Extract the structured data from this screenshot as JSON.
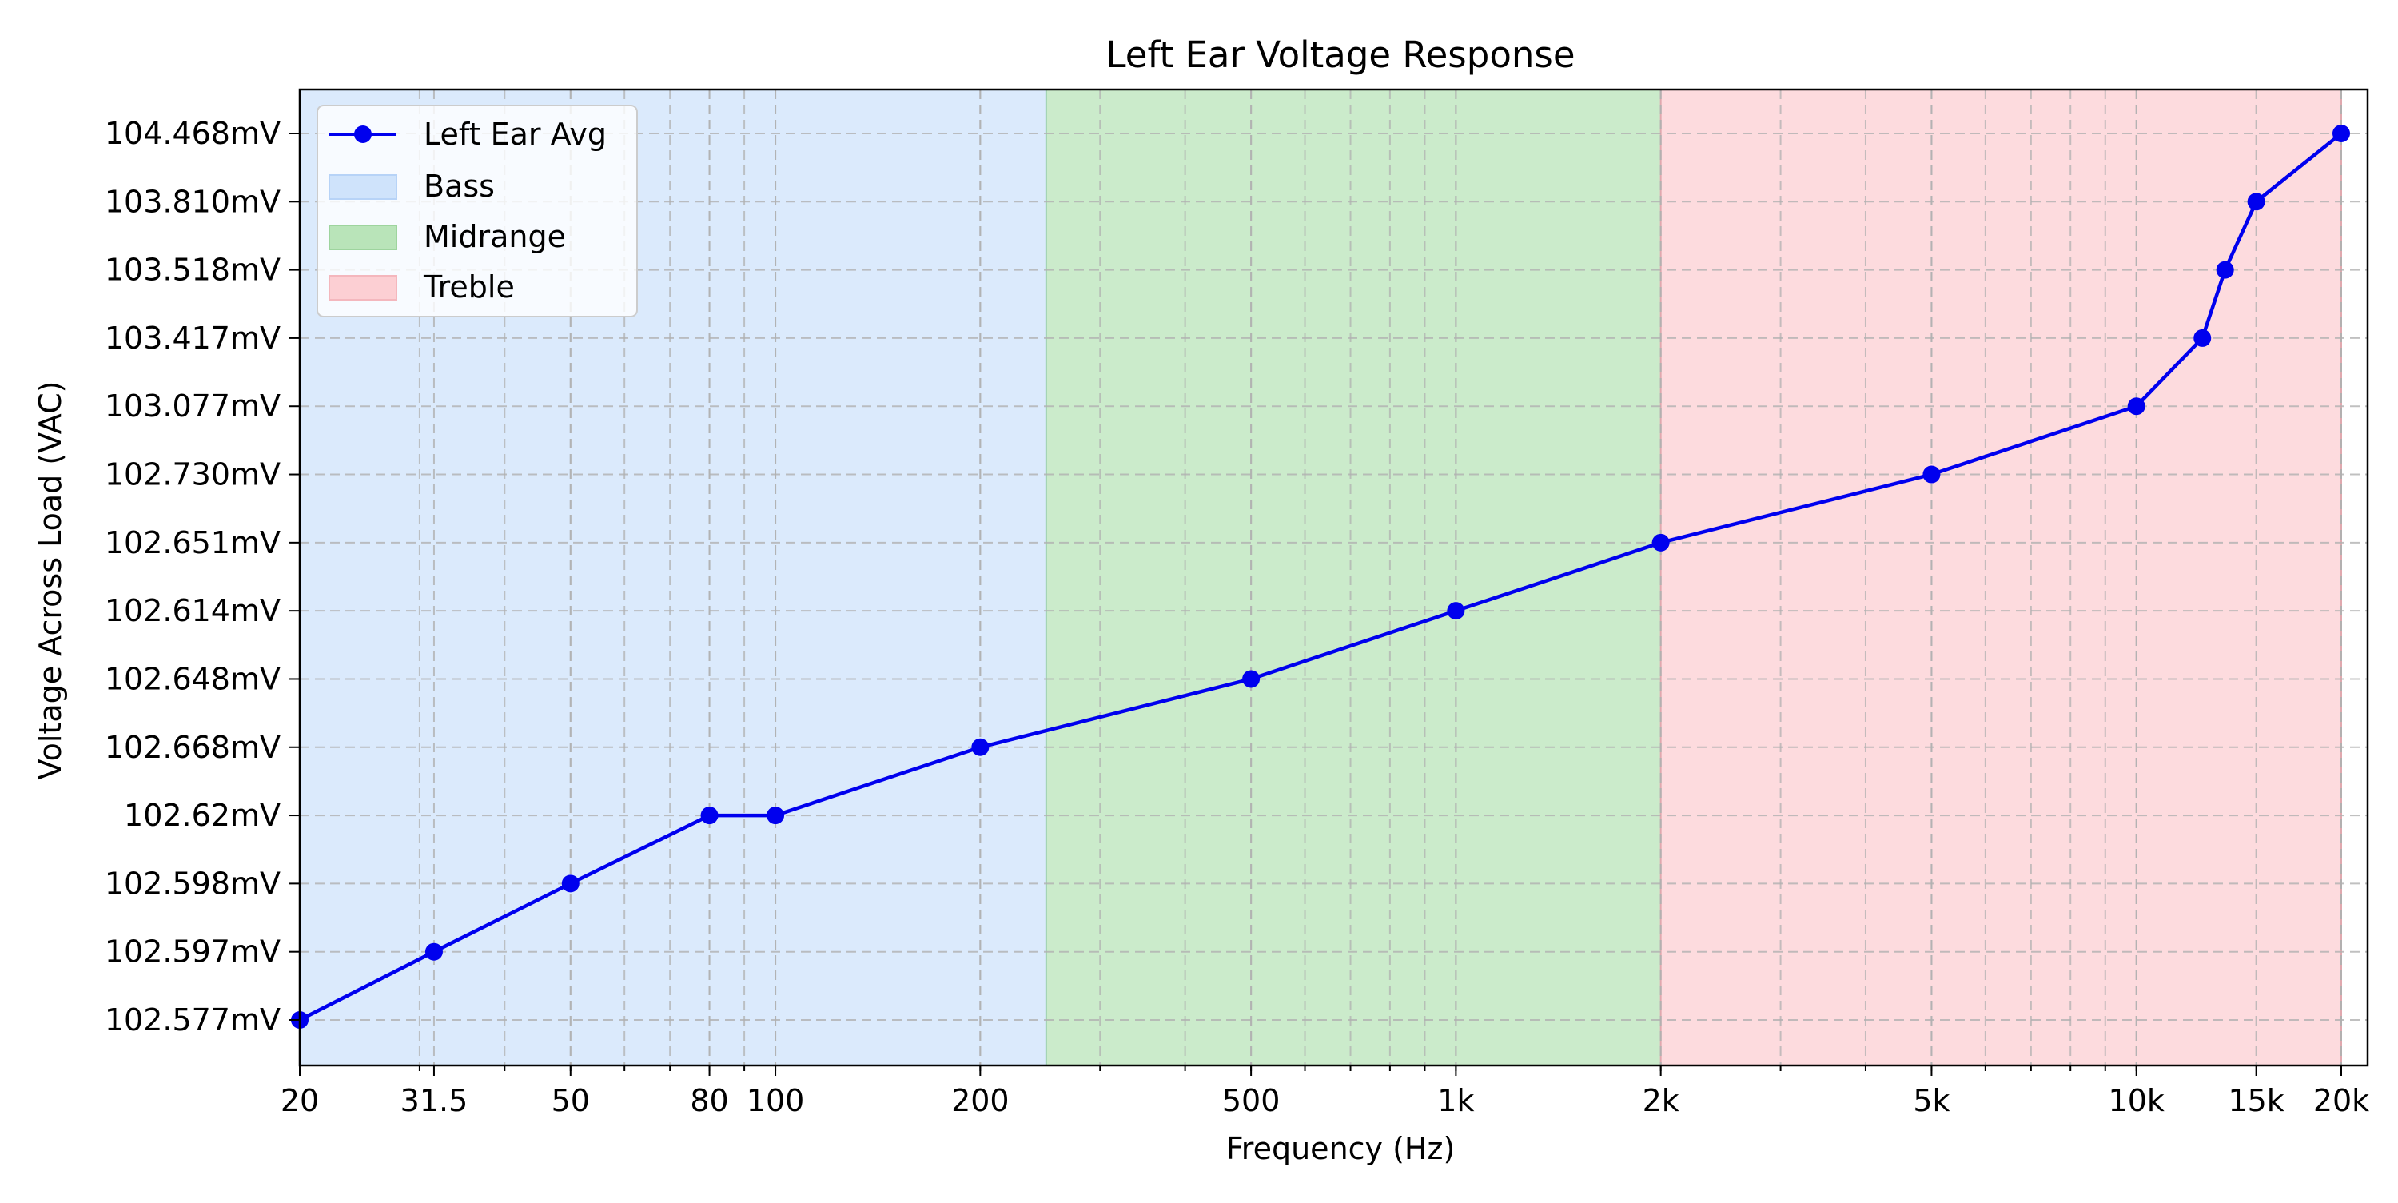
{
  "chart_data": {
    "type": "line",
    "title": "Left Ear Voltage Response",
    "xlabel": "Frequency (Hz)",
    "ylabel": "Voltage Across Load (VAC)",
    "x_scale": "log",
    "xlim": [
      20,
      21000
    ],
    "x_ticks": [
      {
        "value": 20,
        "label": "20"
      },
      {
        "value": 31.5,
        "label": "31.5"
      },
      {
        "value": 50,
        "label": "50"
      },
      {
        "value": 80,
        "label": "80"
      },
      {
        "value": 100,
        "label": "100"
      },
      {
        "value": 200,
        "label": "200"
      },
      {
        "value": 500,
        "label": "500"
      },
      {
        "value": 1000,
        "label": "1k"
      },
      {
        "value": 2000,
        "label": "2k"
      },
      {
        "value": 5000,
        "label": "5k"
      },
      {
        "value": 10000,
        "label": "10k"
      },
      {
        "value": 15000,
        "label": "15k"
      },
      {
        "value": 20000,
        "label": "20k"
      }
    ],
    "y_scale": "categorical (evenly spaced tick labels)",
    "y_ticks": [
      "102.577mV",
      "102.597mV",
      "102.598mV",
      "102.62mV",
      "102.668mV",
      "102.648mV",
      "102.614mV",
      "102.651mV",
      "102.730mV",
      "103.077mV",
      "103.417mV",
      "103.518mV",
      "103.810mV",
      "104.468mV"
    ],
    "grid": true,
    "grid_style": "dashed",
    "legend_placement": "top-left",
    "bands": [
      {
        "name": "Bass",
        "from": 20,
        "to": 250,
        "color": "#cfe3fb"
      },
      {
        "name": "Midrange",
        "from": 250,
        "to": 2000,
        "color": "#b9e4b9"
      },
      {
        "name": "Treble",
        "from": 2000,
        "to": 20000,
        "color": "#fccfd3"
      }
    ],
    "series": [
      {
        "name": "Left Ear Avg",
        "color": "#0000ee",
        "marker": "circle",
        "x": [
          20,
          31.5,
          50,
          80,
          100,
          200,
          500,
          1000,
          2000,
          5000,
          10000,
          12500,
          13500,
          15000,
          20000
        ],
        "y_index": [
          0,
          1,
          2,
          3,
          3,
          4,
          5,
          6,
          7,
          8,
          9,
          10,
          11,
          12,
          13
        ]
      }
    ]
  }
}
